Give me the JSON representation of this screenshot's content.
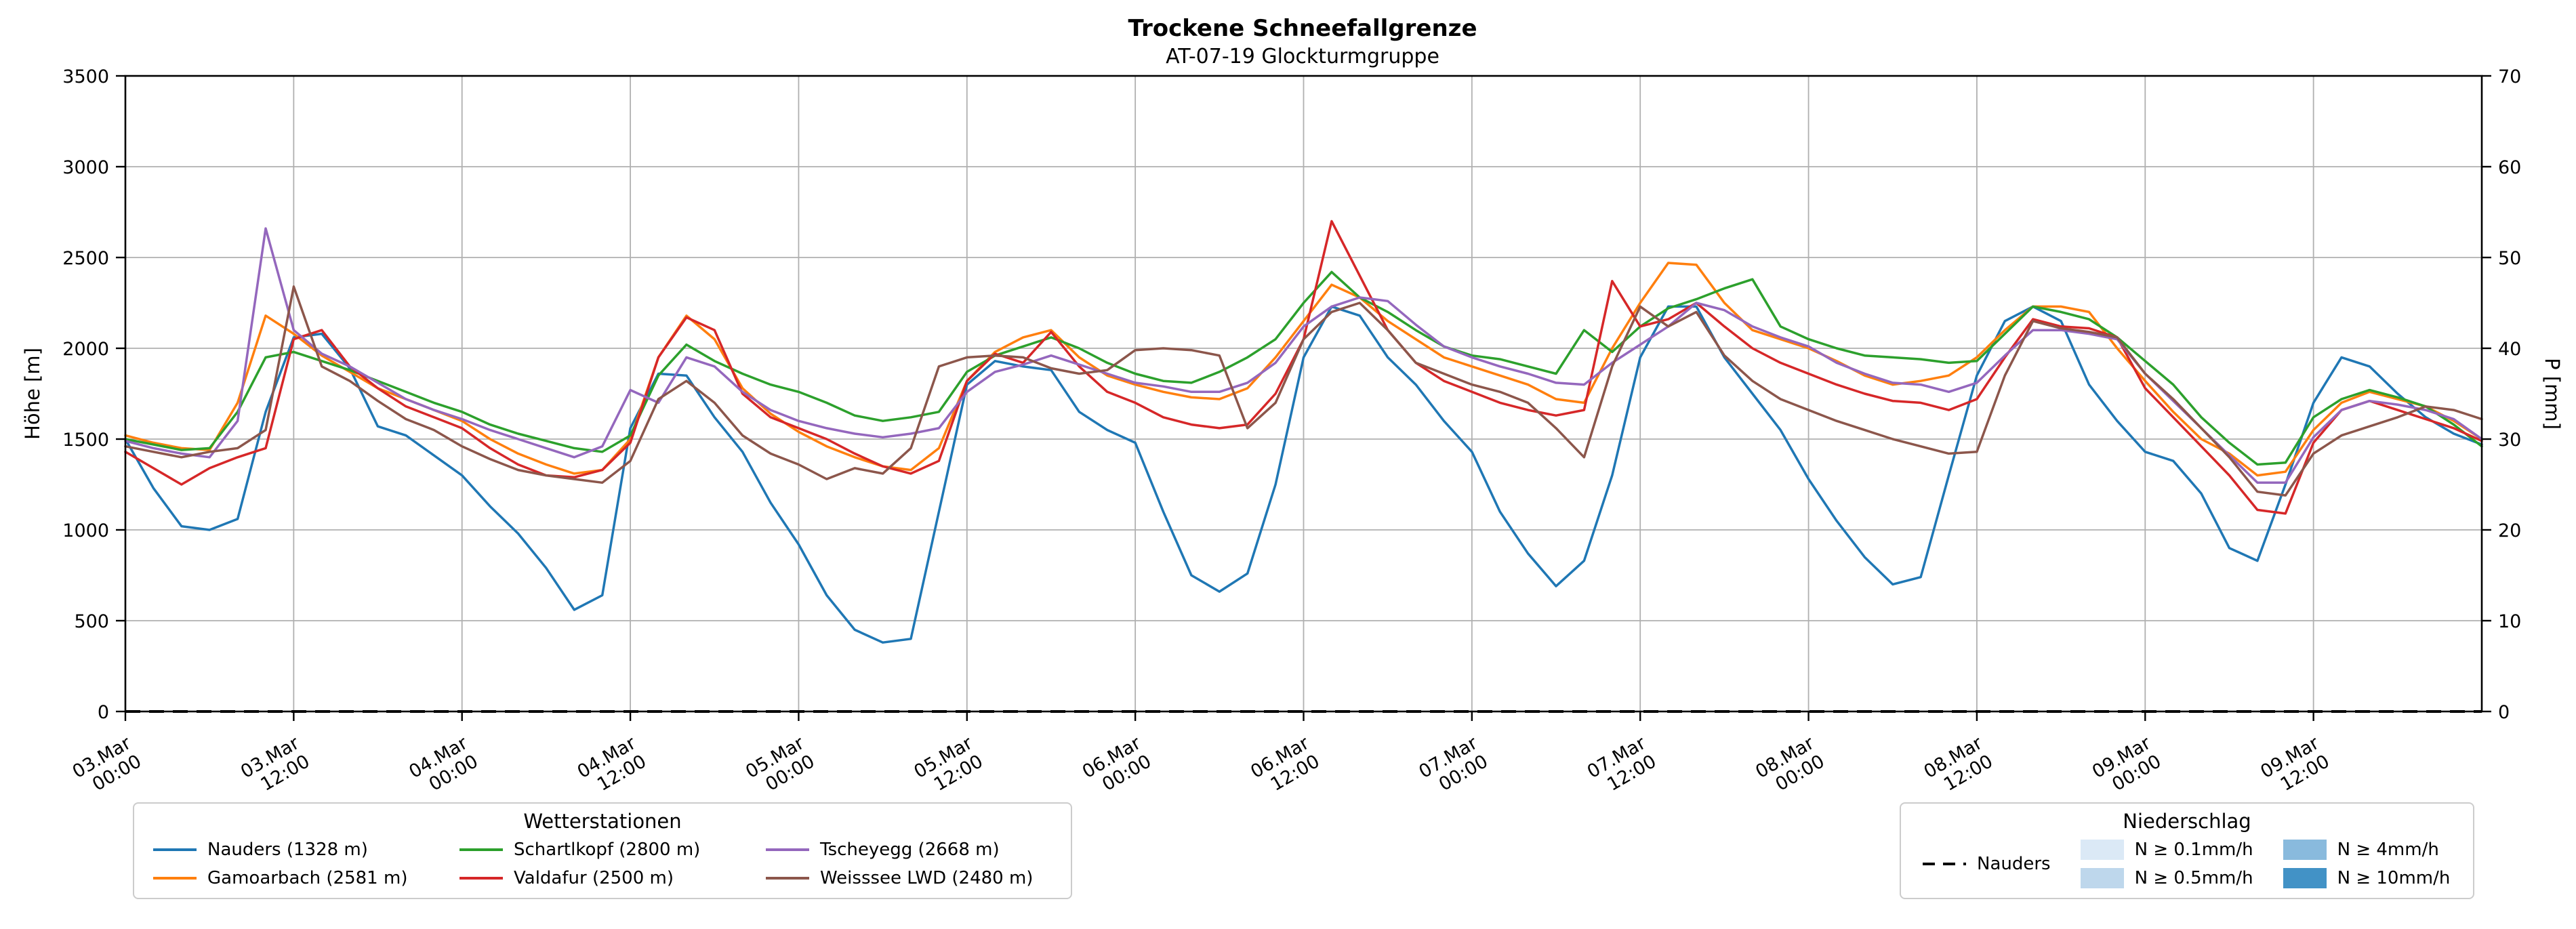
{
  "header": {
    "title": "Trockene Schneefallgrenze",
    "subtitle": "AT-07-19 Glockturmgruppe"
  },
  "legend_stations": {
    "title": "Wetterstationen"
  },
  "legend_precip": {
    "title": "Niederschlag",
    "line_item": {
      "label": "Nauders",
      "color": "#000000"
    },
    "patches": [
      {
        "label": "N ≥ 0.1mm/h",
        "color": "#dbe9f6"
      },
      {
        "label": "N ≥ 0.5mm/h",
        "color": "#bed7ec"
      },
      {
        "label": "N ≥ 4mm/h",
        "color": "#89badd"
      },
      {
        "label": "N ≥ 10mm/h",
        "color": "#4292c6"
      }
    ]
  },
  "chart_data": {
    "type": "line",
    "title": "Trockene Schneefallgrenze",
    "subtitle": "AT-07-19 Glockturmgruppe",
    "x_unit": "hours since 03.Mar 00:00",
    "x_range": [
      0,
      168
    ],
    "x_step_hours": 2,
    "grid": true,
    "x_ticks": [
      {
        "hour": 0,
        "top": "03.Mar",
        "bottom": "00:00"
      },
      {
        "hour": 12,
        "top": "03.Mar",
        "bottom": "12:00"
      },
      {
        "hour": 24,
        "top": "04.Mar",
        "bottom": "00:00"
      },
      {
        "hour": 36,
        "top": "04.Mar",
        "bottom": "12:00"
      },
      {
        "hour": 48,
        "top": "05.Mar",
        "bottom": "00:00"
      },
      {
        "hour": 60,
        "top": "05.Mar",
        "bottom": "12:00"
      },
      {
        "hour": 72,
        "top": "06.Mar",
        "bottom": "00:00"
      },
      {
        "hour": 84,
        "top": "06.Mar",
        "bottom": "12:00"
      },
      {
        "hour": 96,
        "top": "07.Mar",
        "bottom": "00:00"
      },
      {
        "hour": 108,
        "top": "07.Mar",
        "bottom": "12:00"
      },
      {
        "hour": 120,
        "top": "08.Mar",
        "bottom": "00:00"
      },
      {
        "hour": 132,
        "top": "08.Mar",
        "bottom": "12:00"
      },
      {
        "hour": 144,
        "top": "09.Mar",
        "bottom": "00:00"
      },
      {
        "hour": 156,
        "top": "09.Mar",
        "bottom": "12:00"
      }
    ],
    "y_left": {
      "label": "Höhe [m]",
      "range": [
        0,
        3500
      ],
      "ticks": [
        0,
        500,
        1000,
        1500,
        2000,
        2500,
        3000,
        3500
      ]
    },
    "y_right": {
      "label": "P [mm]",
      "range": [
        0,
        70
      ],
      "ticks": [
        0,
        10,
        20,
        30,
        40,
        50,
        60,
        70
      ]
    },
    "series": [
      {
        "id": "nauders",
        "name": "Nauders (1328 m)",
        "color": "#1f77b4",
        "values": [
          1500,
          1230,
          1020,
          1000,
          1060,
          1650,
          2060,
          2080,
          1890,
          1570,
          1520,
          1410,
          1300,
          1130,
          980,
          790,
          560,
          640,
          1560,
          1860,
          1850,
          1620,
          1430,
          1150,
          920,
          640,
          450,
          380,
          400,
          1100,
          1800,
          1930,
          1900,
          1880,
          1650,
          1550,
          1480,
          1100,
          750,
          660,
          760,
          1250,
          1950,
          2230,
          2180,
          1950,
          1800,
          1600,
          1430,
          1100,
          870,
          690,
          830,
          1300,
          1950,
          2230,
          2230,
          1950,
          1750,
          1550,
          1280,
          1050,
          850,
          700,
          740,
          1300,
          1850,
          2150,
          2230,
          2150,
          1800,
          1600,
          1430,
          1380,
          1200,
          900,
          830,
          1250,
          1700,
          1950,
          1900,
          1750,
          1620,
          1530,
          1470
        ]
      },
      {
        "id": "gamoarbach",
        "name": "Gamoarbach (2581 m)",
        "color": "#ff7f0e",
        "values": [
          1520,
          1480,
          1450,
          1440,
          1700,
          2180,
          2080,
          1960,
          1870,
          1780,
          1720,
          1660,
          1600,
          1500,
          1420,
          1360,
          1310,
          1330,
          1500,
          1950,
          2180,
          2050,
          1780,
          1640,
          1540,
          1460,
          1400,
          1350,
          1330,
          1450,
          1820,
          1980,
          2060,
          2100,
          1950,
          1850,
          1800,
          1760,
          1730,
          1720,
          1780,
          1950,
          2150,
          2350,
          2280,
          2150,
          2050,
          1950,
          1900,
          1850,
          1800,
          1720,
          1700,
          2000,
          2250,
          2470,
          2460,
          2250,
          2100,
          2050,
          2000,
          1930,
          1850,
          1800,
          1820,
          1850,
          1950,
          2100,
          2230,
          2230,
          2200,
          2000,
          1820,
          1650,
          1500,
          1420,
          1300,
          1320,
          1550,
          1700,
          1760,
          1720,
          1680,
          1600,
          1500
        ]
      },
      {
        "id": "schartlkopf",
        "name": "Schartlkopf (2800 m)",
        "color": "#2ca02c",
        "values": [
          1500,
          1470,
          1440,
          1450,
          1650,
          1950,
          1980,
          1930,
          1880,
          1820,
          1760,
          1700,
          1650,
          1580,
          1530,
          1490,
          1450,
          1430,
          1520,
          1850,
          2020,
          1930,
          1860,
          1800,
          1760,
          1700,
          1630,
          1600,
          1620,
          1650,
          1870,
          1960,
          2010,
          2060,
          2000,
          1920,
          1860,
          1820,
          1810,
          1870,
          1950,
          2050,
          2250,
          2420,
          2280,
          2200,
          2100,
          2010,
          1960,
          1940,
          1900,
          1860,
          2100,
          1980,
          2120,
          2220,
          2270,
          2330,
          2380,
          2120,
          2050,
          2000,
          1960,
          1950,
          1940,
          1920,
          1930,
          2080,
          2230,
          2200,
          2160,
          2060,
          1930,
          1800,
          1620,
          1480,
          1360,
          1370,
          1620,
          1720,
          1770,
          1730,
          1680,
          1580,
          1460
        ]
      },
      {
        "id": "valdafur",
        "name": "Valdafur (2500 m)",
        "color": "#d62728",
        "values": [
          1430,
          1340,
          1250,
          1340,
          1400,
          1450,
          2050,
          2100,
          1900,
          1780,
          1680,
          1620,
          1560,
          1450,
          1360,
          1300,
          1290,
          1330,
          1480,
          1950,
          2170,
          2100,
          1750,
          1620,
          1560,
          1500,
          1420,
          1350,
          1310,
          1380,
          1820,
          1970,
          1920,
          2090,
          1900,
          1760,
          1700,
          1620,
          1580,
          1560,
          1580,
          1750,
          2050,
          2700,
          2400,
          2100,
          1920,
          1820,
          1760,
          1700,
          1660,
          1630,
          1660,
          2370,
          2120,
          2160,
          2250,
          2120,
          2000,
          1920,
          1860,
          1800,
          1750,
          1710,
          1700,
          1660,
          1720,
          1950,
          2160,
          2120,
          2110,
          2060,
          1780,
          1620,
          1460,
          1300,
          1110,
          1090,
          1480,
          1660,
          1710,
          1660,
          1610,
          1560,
          1490
        ]
      },
      {
        "id": "tscheyegg",
        "name": "Tscheyegg (2668 m)",
        "color": "#9467bd",
        "values": [
          1490,
          1450,
          1420,
          1400,
          1600,
          2660,
          2100,
          1970,
          1900,
          1810,
          1720,
          1660,
          1610,
          1550,
          1500,
          1450,
          1400,
          1460,
          1770,
          1700,
          1950,
          1900,
          1760,
          1660,
          1600,
          1560,
          1530,
          1510,
          1530,
          1560,
          1760,
          1870,
          1910,
          1960,
          1910,
          1860,
          1810,
          1790,
          1760,
          1760,
          1810,
          1920,
          2120,
          2230,
          2280,
          2260,
          2130,
          2010,
          1950,
          1900,
          1860,
          1810,
          1800,
          1920,
          2020,
          2120,
          2250,
          2210,
          2120,
          2060,
          2010,
          1920,
          1860,
          1810,
          1800,
          1760,
          1810,
          1960,
          2100,
          2100,
          2080,
          2050,
          1860,
          1710,
          1560,
          1410,
          1260,
          1260,
          1510,
          1660,
          1710,
          1690,
          1660,
          1610,
          1500
        ]
      },
      {
        "id": "weisssee",
        "name": "Weisssee LWD (2480 m)",
        "color": "#8c564b",
        "values": [
          1460,
          1430,
          1400,
          1430,
          1450,
          1550,
          2340,
          1900,
          1820,
          1710,
          1610,
          1550,
          1460,
          1390,
          1330,
          1300,
          1280,
          1260,
          1380,
          1720,
          1820,
          1700,
          1520,
          1420,
          1360,
          1280,
          1340,
          1310,
          1450,
          1900,
          1950,
          1960,
          1950,
          1890,
          1860,
          1880,
          1990,
          2000,
          1990,
          1960,
          1560,
          1700,
          2050,
          2200,
          2250,
          2100,
          1920,
          1860,
          1800,
          1760,
          1700,
          1560,
          1400,
          1900,
          2230,
          2120,
          2200,
          1960,
          1820,
          1720,
          1660,
          1600,
          1550,
          1500,
          1460,
          1420,
          1430,
          1850,
          2150,
          2110,
          2090,
          2060,
          1860,
          1720,
          1560,
          1400,
          1210,
          1190,
          1420,
          1520,
          1570,
          1620,
          1680,
          1660,
          1610
        ]
      }
    ],
    "precip_series": {
      "name": "Nauders",
      "axis": "right",
      "style": "dashed",
      "color": "#000000",
      "constant_value": 0
    }
  }
}
